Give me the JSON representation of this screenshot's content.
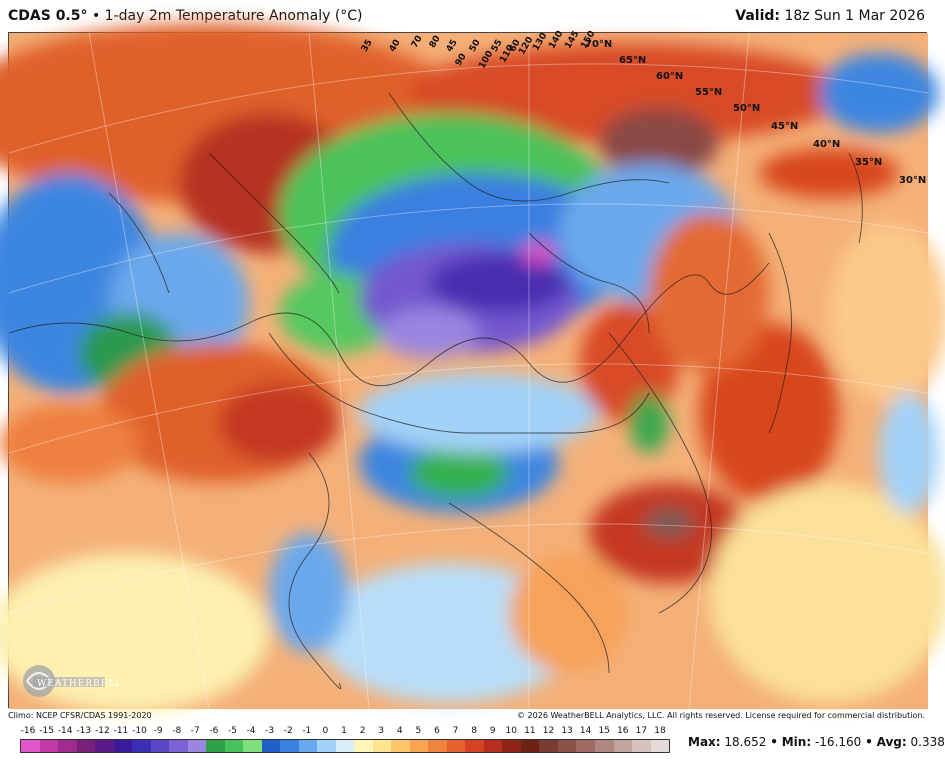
{
  "header": {
    "model": "CDAS 0.5°",
    "separator": "•",
    "product": "1-day 2m Temperature Anomaly (°C)",
    "valid_label": "Valid:",
    "valid_time": "18z Sun 1 Mar 2026"
  },
  "map": {
    "lat_labels": [
      "70°N",
      "65°N",
      "60°N",
      "55°N",
      "50°N",
      "45°N",
      "40°N",
      "35°N",
      "30°N"
    ],
    "lon_labels": [
      "35",
      "40",
      "45",
      "50",
      "55",
      "60",
      "70",
      "80",
      "90",
      "100",
      "110",
      "120",
      "130",
      "140",
      "145",
      "150"
    ],
    "logo_text": "WEATHERBELL"
  },
  "footer": {
    "climo": "Climo: NCEP CFSR/CDAS 1991-2020",
    "copyright": "© 2026 WeatherBELL Analytics, LLC. All rights reserved. License required for commercial distribution."
  },
  "colorbar": {
    "labels": [
      "-16",
      "-15",
      "-14",
      "-13",
      "-12",
      "-11",
      "-10",
      "-9",
      "-8",
      "-7",
      "-6",
      "-5",
      "-4",
      "-3",
      "-2",
      "-1",
      "0",
      "1",
      "2",
      "3",
      "4",
      "5",
      "6",
      "7",
      "8",
      "9",
      "10",
      "11",
      "12",
      "13",
      "14",
      "15",
      "16",
      "17",
      "18"
    ],
    "colors": [
      "#e055c8",
      "#c23aa8",
      "#a02a90",
      "#7a1f7a",
      "#5b1a8a",
      "#3a1a9a",
      "#3b2fb8",
      "#5a47c8",
      "#7b63d6",
      "#9a86e0",
      "#2fa14a",
      "#45c35a",
      "#7de07d",
      "#1e5fc8",
      "#3b82e0",
      "#68a8ee",
      "#a3d2f8",
      "#d8eefa",
      "#fdf6b8",
      "#fde590",
      "#fbc66a",
      "#f8a550",
      "#f0843e",
      "#e5622e",
      "#d44424",
      "#b82e1e",
      "#8f2418",
      "#6e2214",
      "#7a3b32",
      "#8c5249",
      "#9e6a62",
      "#b08780",
      "#c2a49f",
      "#d4c2bf",
      "#e4dbd9"
    ]
  },
  "stats": {
    "max_label": "Max:",
    "max": "18.652",
    "min_label": "Min:",
    "min": "-16.160",
    "avg_label": "Avg:",
    "avg": "0.338",
    "sep": "•"
  }
}
